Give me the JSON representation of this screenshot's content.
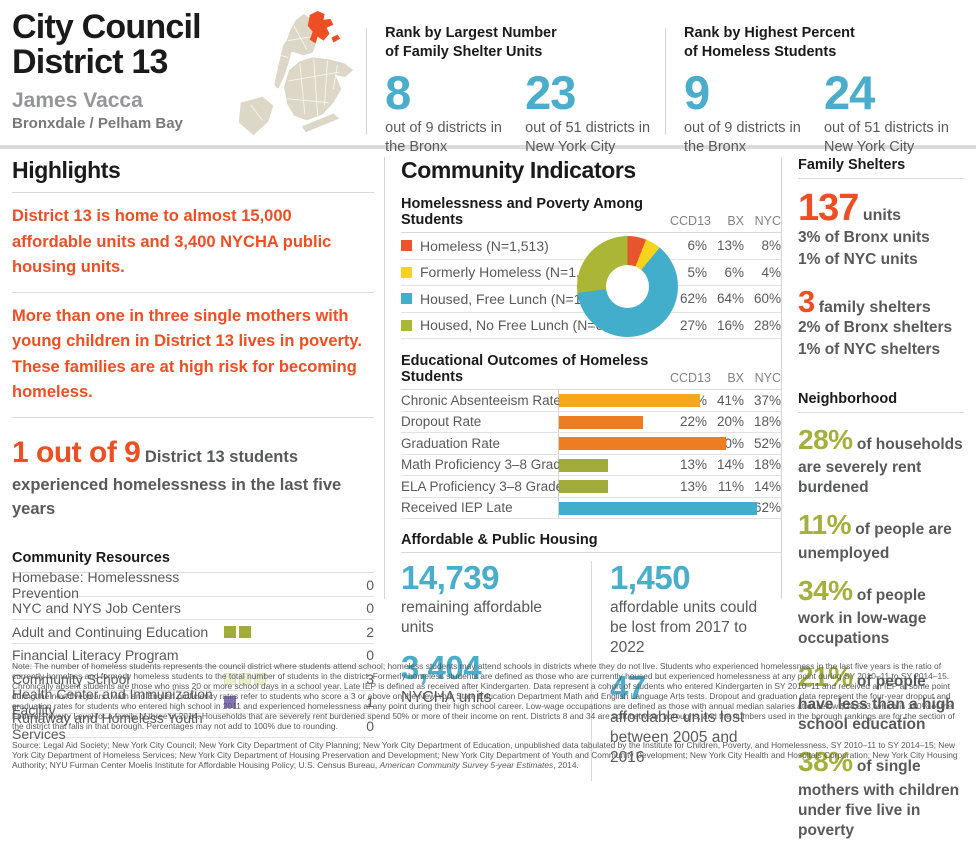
{
  "palette": {
    "accent_blue": "#49adcb",
    "accent_orange": "#ee4e23",
    "accent_olive": "#a5af3b",
    "accent_yellow": "#f8d21c",
    "accent_purple": "#8872b5",
    "pale_olive": "#eaefcd",
    "map_beige": "#dcd7c7",
    "text_gray": "#58595b"
  },
  "header": {
    "title_line1": "City Council",
    "title_line2": "District 13",
    "member": "James Vacca",
    "neighborhoods": "Bronxdale / Pelham Bay",
    "ranks": [
      {
        "heading_line1": "Rank by Largest Number",
        "heading_line2": "of Family Shelter Units",
        "stats": [
          {
            "value": "8",
            "caption": "out of 9 districts in the Bronx"
          },
          {
            "value": "23",
            "caption": "out of 51 districts in New York City"
          }
        ]
      },
      {
        "heading_line1": "Rank by Highest Percent",
        "heading_line2": "of Homeless Students",
        "stats": [
          {
            "value": "9",
            "caption": "out of 9 districts in the Bronx"
          },
          {
            "value": "24",
            "caption": "out of 51 districts in New York City"
          }
        ]
      }
    ]
  },
  "highlights": {
    "title": "Highlights",
    "paragraphs": [
      "District 13 is home to almost 15,000 affordable units and 3,400 NYCHA public housing units.",
      "More than one in three single mothers with young children in District 13 lives in poverty. These families are at high risk for becoming homeless."
    ],
    "stat_big": "1 out of 9",
    "stat_rest": " District 13 students experienced homelessness in the last five years"
  },
  "community_resources": {
    "title": "Community Resources",
    "items": [
      {
        "label": "Homebase: Homelessness Prevention",
        "count": 0,
        "color": null
      },
      {
        "label": "NYC and NYS Job Centers",
        "count": 0,
        "color": null
      },
      {
        "label": "Adult and Continuing Education",
        "count": 2,
        "color": "#a2ac3a"
      },
      {
        "label": "Financial Literacy Program",
        "count": 0,
        "color": null
      },
      {
        "label": "Community School",
        "count": 3,
        "color": "#eaefcd",
        "border": "#d9dfc0"
      },
      {
        "label": "Health Center and Immunization Facility",
        "count": 1,
        "color": "#8872b5"
      },
      {
        "label": "Runaway and Homeless Youth Services",
        "count": 0,
        "color": null
      }
    ]
  },
  "community_indicators": {
    "title": "Community Indicators",
    "columns": [
      "CCD13",
      "BX",
      "NYC"
    ],
    "poverty_table": {
      "heading": "Homelessness and Poverty Among Students",
      "rows": [
        {
          "label": "Homeless (N=1,513)",
          "color": "#e8542d",
          "values": [
            "6%",
            "13%",
            "8%"
          ]
        },
        {
          "label": "Formerly Homeless (N=1,098)",
          "color": "#f8d21c",
          "values": [
            "5%",
            "6%",
            "4%"
          ]
        },
        {
          "label": "Housed, Free Lunch (N=14,709)",
          "color": "#43aecc",
          "values": [
            "62%",
            "64%",
            "60%"
          ]
        },
        {
          "label": "Housed, No Free Lunch (N=6,273)",
          "color": "#abb637",
          "values": [
            "27%",
            "16%",
            "28%"
          ]
        }
      ]
    },
    "outcomes_table": {
      "heading": "Educational Outcomes of Homeless Students",
      "rows": [
        {
          "label": "Chronic Absenteeism Rate",
          "bar_value": 37,
          "color": "#f5a71e",
          "values": [
            "37%",
            "41%",
            "37%"
          ]
        },
        {
          "label": "Dropout Rate",
          "bar_value": 22,
          "color": "#ed7d23",
          "values": [
            "22%",
            "20%",
            "18%"
          ]
        },
        {
          "label": "Graduation Rate",
          "bar_value": 44,
          "color": "#ed7d23",
          "values": [
            "44%",
            "50%",
            "52%"
          ]
        },
        {
          "label": "Math Proficiency 3–8 Grade",
          "bar_value": 13,
          "color": "#a2ac3a",
          "values": [
            "13%",
            "14%",
            "18%"
          ]
        },
        {
          "label": "ELA Proficiency 3–8 Grade",
          "bar_value": 13,
          "color": "#a2ac3a",
          "values": [
            "13%",
            "11%",
            "14%"
          ]
        },
        {
          "label": "Received IEP Late",
          "bar_value": 52,
          "color": "#43aecc",
          "values": [
            "52%",
            "62%",
            "62%"
          ]
        }
      ]
    },
    "housing": {
      "heading": "Affordable & Public Housing",
      "stats": [
        {
          "value": "14,739",
          "caption": "remaining affordable units"
        },
        {
          "value": "3,404",
          "caption": "NYCHA units"
        },
        {
          "value": "1,450",
          "caption": "affordable units could be lost from 2017 to 2022"
        },
        {
          "value": "47",
          "caption": "affordable units lost between 2005 and 2016"
        }
      ]
    }
  },
  "family_shelters": {
    "title": "Family Shelters",
    "groups": [
      {
        "big": "137",
        "unit": "units",
        "lines": [
          "3% of Bronx units",
          "1% of NYC units"
        ]
      },
      {
        "big": "3",
        "unit": "family shelters",
        "lines": [
          "2% of Bronx shelters",
          "1% of NYC shelters"
        ]
      }
    ]
  },
  "neighborhood": {
    "title": "Neighborhood",
    "stats": [
      {
        "pct": "28%",
        "text": " of households are severely rent burdened"
      },
      {
        "pct": "11%",
        "text": " of people are unemployed"
      },
      {
        "pct": "34%",
        "text": " of people work in low-wage occupations"
      },
      {
        "pct": "21%",
        "text": " of people have less than a high school education"
      },
      {
        "pct": "38%",
        "text": " of single mothers with children under five live in poverty"
      }
    ]
  },
  "footer": {
    "note": "Note: The number of homeless students represents the council district where students attend school; homeless students may attend schools in districts where they do not live. Students who experienced homelessness in the last five years is the ratio of currently homeless and formerly homeless students to the total number of students in the district. Formerly homeless students are defined as those who are currently housed but experienced homelessness at any point during SY 2010–11 to SY 2014–15. Chronically absent students are those who miss 20 or more school days in a school year. Late IEP is defined as received after Kindergarten. Data represent a cohort of students who entered Kindergarten in SY 2010–11 and received an IEP at some point during the next five years. Math and English proficiency rates refer to students who score a 3 or above on the New York State Education Department Math and English Language Arts tests. Dropout and graduation data represent the four-year dropout and graduation rates for students who entered high school in 2011 and experienced homelessness at any point during their high school career. Low-wage occupations are defined as those with annual median salaries at or below $28,583, which is 150% of the Federal Poverty Level for a family of three in 2014. Households that are severely rent burdened spend 50% or more of their income on rent. Districts 8 and 34 are split between boroughs, and the numbers used in the borough rankings are for the section of the district that falls in that borough. Percentages may not add to 100% due to rounding.",
    "source_before": "Source: Legal Aid Society; New York City Council; New York City Department of City Planning; New York City Department of Education, unpublished data tabulated by the Institute for Children, Poverty, and Homelessness, SY 2010–11 to SY 2014–15; New York City Department of Homeless Services; New York City Department of Housing Preservation and Development; New York City Department of Youth and Community Development; New York City Health and Hospitals Corporation; New York City Housing Authority; NYU Furman Center Moelis Institute for Affordable Housing Policy; U.S. Census Bureau, ",
    "source_italic": "American Community Survey 5-year Estimates",
    "source_after": ", 2014."
  },
  "chart_data": [
    {
      "type": "pie",
      "donut": true,
      "title": "Homelessness and Poverty Among Students (CCD13)",
      "labels": [
        "Homeless (N=1,513)",
        "Formerly Homeless (N=1,098)",
        "Housed, Free Lunch (N=14,709)",
        "Housed, No Free Lunch (N=6,273)"
      ],
      "values": [
        6,
        5,
        62,
        27
      ],
      "colors": [
        "#e8542d",
        "#f8d21c",
        "#43aecc",
        "#abb637"
      ],
      "legend_position": "left"
    },
    {
      "type": "bar",
      "orientation": "horizontal",
      "title": "Educational Outcomes of Homeless Students",
      "categories": [
        "Chronic Absenteeism Rate",
        "Dropout Rate",
        "Graduation Rate",
        "Math Proficiency 3–8 Grade",
        "ELA Proficiency 3–8 Grade",
        "Received IEP Late"
      ],
      "series": [
        {
          "name": "CCD13",
          "values": [
            37,
            22,
            44,
            13,
            13,
            52
          ]
        },
        {
          "name": "BX",
          "values": [
            41,
            20,
            50,
            14,
            11,
            62
          ]
        },
        {
          "name": "NYC",
          "values": [
            37,
            18,
            52,
            18,
            14,
            62
          ]
        }
      ],
      "bars_shown_for": "CCD13",
      "xlim": [
        0,
        55
      ],
      "grid": false
    }
  ]
}
